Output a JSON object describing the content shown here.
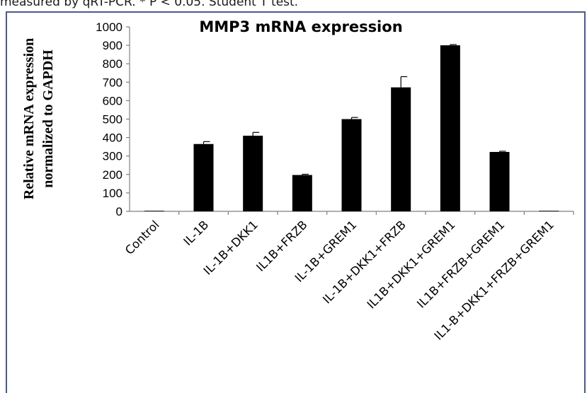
{
  "caption": "measured by qRT-PCR. * P < 0.05. Student T test.",
  "chart_data": {
    "type": "bar",
    "title": "MMP3 mRNA expression",
    "ylabel_lines": [
      "Relative mRNA expression",
      "normalized to GAPDH"
    ],
    "xlabel": "",
    "ylim": [
      0,
      1000
    ],
    "yticks": [
      0,
      100,
      200,
      300,
      400,
      500,
      600,
      700,
      800,
      900,
      1000
    ],
    "categories": [
      "Control",
      "IL-1B",
      "IL-1B+DKK1",
      "IL1B+FRZB",
      "IL-1B+GREM1",
      "IL-1B+DKK1+FRZB",
      "IL1B+DKK1+GREM1",
      "IL1B+FRZB+GREM1",
      "IL1-B+DKK1+FRZB+GREM1"
    ],
    "values": [
      3,
      365,
      410,
      197,
      500,
      672,
      900,
      322,
      3
    ],
    "errors": [
      0,
      13,
      18,
      4,
      9,
      58,
      4,
      4,
      0
    ],
    "bar_color": "#000000",
    "grid": false,
    "legend": "none"
  }
}
